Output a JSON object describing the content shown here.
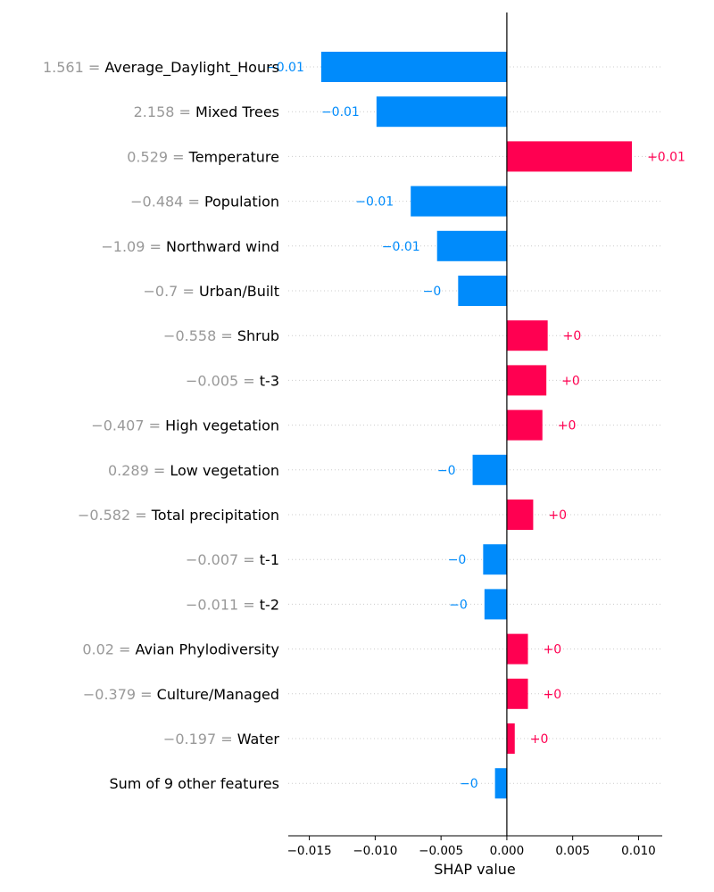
{
  "chart_data": {
    "type": "bar",
    "orientation": "horizontal",
    "xlabel": "SHAP value",
    "xlim": [
      -0.0166,
      0.0118
    ],
    "xticks": [
      -0.015,
      -0.01,
      -0.005,
      0.0,
      0.005,
      0.01
    ],
    "xtick_labels": [
      "−0.015",
      "−0.010",
      "−0.005",
      "0.000",
      "0.005",
      "0.010"
    ],
    "colors": {
      "positive": "#ff0051",
      "negative": "#008bfb",
      "feature_value": "#999999",
      "feature_name": "#000000",
      "grid": "#cccccc"
    },
    "features": [
      {
        "value_label": "1.561 =",
        "name": "Average_Daylight_Hours",
        "shap": -0.0141,
        "label": "−0.01"
      },
      {
        "value_label": "2.158 =",
        "name": "Mixed Trees",
        "shap": -0.0099,
        "label": "−0.01"
      },
      {
        "value_label": "0.529 =",
        "name": "Temperature",
        "shap": 0.0095,
        "label": "+0.01"
      },
      {
        "value_label": "−0.484 =",
        "name": "Population",
        "shap": -0.0073,
        "label": "−0.01"
      },
      {
        "value_label": "−1.09 =",
        "name": "Northward wind",
        "shap": -0.0053,
        "label": "−0.01"
      },
      {
        "value_label": "−0.7 =",
        "name": "Urban/Built",
        "shap": -0.0037,
        "label": "−0"
      },
      {
        "value_label": "−0.558 =",
        "name": "Shrub",
        "shap": 0.0031,
        "label": "+0"
      },
      {
        "value_label": "−0.005 =",
        "name": "t-3",
        "shap": 0.003,
        "label": "+0"
      },
      {
        "value_label": "−0.407 =",
        "name": "High vegetation",
        "shap": 0.0027,
        "label": "+0"
      },
      {
        "value_label": "0.289 =",
        "name": "Low vegetation",
        "shap": -0.0026,
        "label": "−0"
      },
      {
        "value_label": "−0.582 =",
        "name": "Total precipitation",
        "shap": 0.002,
        "label": "+0"
      },
      {
        "value_label": "−0.007 =",
        "name": "t-1",
        "shap": -0.0018,
        "label": "−0"
      },
      {
        "value_label": "−0.011 =",
        "name": "t-2",
        "shap": -0.0017,
        "label": "−0"
      },
      {
        "value_label": "0.02 =",
        "name": "Avian Phylodiversity",
        "shap": 0.0016,
        "label": "+0"
      },
      {
        "value_label": "−0.379 =",
        "name": "Culture/Managed",
        "shap": 0.0016,
        "label": "+0"
      },
      {
        "value_label": "−0.197 =",
        "name": "Water",
        "shap": 0.0006,
        "label": "+0"
      },
      {
        "value_label": "",
        "name": "Sum of 9 other features",
        "shap": -0.0009,
        "label": "−0"
      }
    ]
  }
}
